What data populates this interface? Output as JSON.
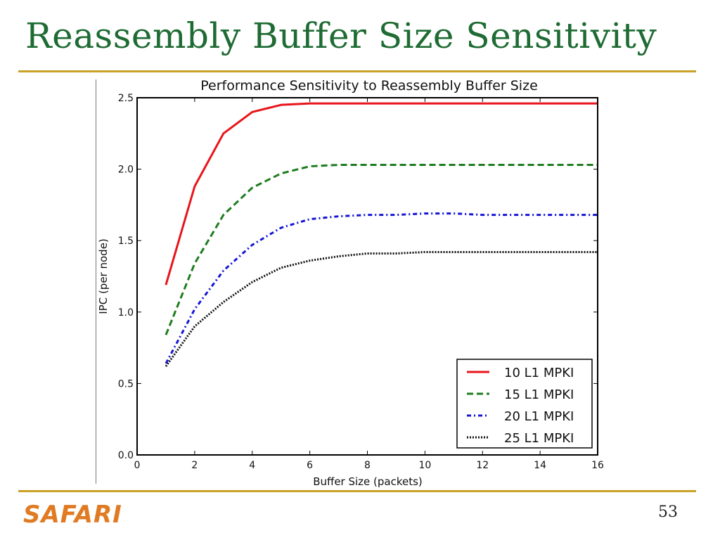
{
  "slide": {
    "title": "Reassembly Buffer Size Sensitivity",
    "logo": "SAFARI",
    "page_number": "53"
  },
  "colors": {
    "title": "#1e6b33",
    "rule": "#c9a227",
    "logo": "#e07b24"
  },
  "chart_data": {
    "type": "line",
    "title": "Performance Sensitivity to Reassembly Buffer Size",
    "xlabel": "Buffer Size (packets)",
    "ylabel": "IPC (per node)",
    "xlim": [
      0,
      16
    ],
    "ylim": [
      0.0,
      2.5
    ],
    "xticks": [
      "0",
      "2",
      "4",
      "6",
      "8",
      "10",
      "12",
      "14",
      "16"
    ],
    "yticks": [
      "0.0",
      "0.5",
      "1.0",
      "1.5",
      "2.0",
      "2.5"
    ],
    "grid": false,
    "legend_position": "lower-right",
    "x": [
      1,
      2,
      3,
      4,
      5,
      6,
      7,
      8,
      9,
      10,
      11,
      12,
      13,
      14,
      15,
      16
    ],
    "series": [
      {
        "name": "10 L1 MPKI",
        "color": "#e8141b",
        "style": "solid",
        "values": [
          1.19,
          1.88,
          2.25,
          2.4,
          2.45,
          2.46,
          2.46,
          2.46,
          2.46,
          2.46,
          2.46,
          2.46,
          2.46,
          2.46,
          2.46,
          2.46
        ]
      },
      {
        "name": "15 L1 MPKI",
        "color": "#1e7d1e",
        "style": "dashed",
        "values": [
          0.84,
          1.34,
          1.68,
          1.87,
          1.97,
          2.02,
          2.03,
          2.03,
          2.03,
          2.03,
          2.03,
          2.03,
          2.03,
          2.03,
          2.03,
          2.03
        ]
      },
      {
        "name": "20 L1 MPKI",
        "color": "#1515d6",
        "style": "dashdot",
        "values": [
          0.64,
          1.02,
          1.29,
          1.47,
          1.59,
          1.65,
          1.67,
          1.68,
          1.68,
          1.69,
          1.69,
          1.68,
          1.68,
          1.68,
          1.68,
          1.68
        ]
      },
      {
        "name": "25 L1 MPKI",
        "color": "#111111",
        "style": "dotted",
        "values": [
          0.62,
          0.9,
          1.07,
          1.21,
          1.31,
          1.36,
          1.39,
          1.41,
          1.41,
          1.42,
          1.42,
          1.42,
          1.42,
          1.42,
          1.42,
          1.42
        ]
      }
    ]
  }
}
